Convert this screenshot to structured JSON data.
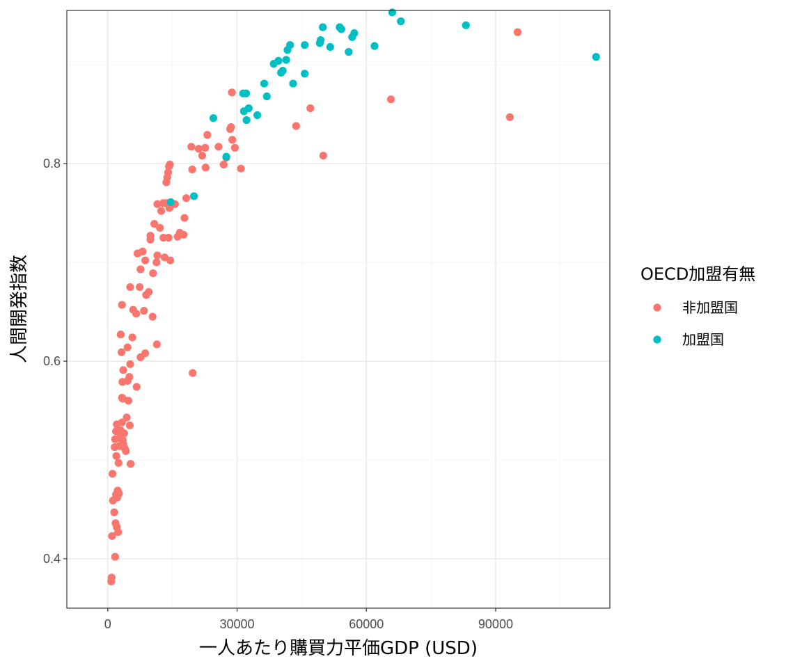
{
  "chart_data": {
    "type": "scatter",
    "title": "",
    "xlabel": "一人あたり購買力平価GDP (USD)",
    "ylabel": "人間開発指数",
    "xlim": [
      -9500,
      116500
    ],
    "ylim": [
      0.35,
      0.955
    ],
    "x_ticks": [
      0,
      30000,
      60000,
      90000
    ],
    "x_tick_labels": [
      "0",
      "30000",
      "60000",
      "90000"
    ],
    "y_ticks": [
      0.4,
      0.6,
      0.8
    ],
    "y_tick_labels": [
      "0.4",
      "0.6",
      "0.8"
    ],
    "grid": true,
    "legend": {
      "title": "OECD加盟有無",
      "placement": "right"
    },
    "series": [
      {
        "name": "非加盟国",
        "color": "#F8766D",
        "points": [
          [
            800,
            0.377
          ],
          [
            900,
            0.381
          ],
          [
            1000,
            0.423
          ],
          [
            1200,
            0.459
          ],
          [
            1100,
            0.486
          ],
          [
            1500,
            0.447
          ],
          [
            1700,
            0.402
          ],
          [
            1800,
            0.436
          ],
          [
            1900,
            0.465
          ],
          [
            1600,
            0.513
          ],
          [
            1700,
            0.521
          ],
          [
            1900,
            0.529
          ],
          [
            2000,
            0.504
          ],
          [
            2100,
            0.432
          ],
          [
            2200,
            0.462
          ],
          [
            2300,
            0.469
          ],
          [
            2400,
            0.427
          ],
          [
            2500,
            0.497
          ],
          [
            2600,
            0.466
          ],
          [
            2700,
            0.514
          ],
          [
            2100,
            0.536
          ],
          [
            2800,
            0.522
          ],
          [
            3000,
            0.53
          ],
          [
            3100,
            0.526
          ],
          [
            3300,
            0.538
          ],
          [
            3500,
            0.52
          ],
          [
            3600,
            0.516
          ],
          [
            3800,
            0.527
          ],
          [
            3900,
            0.512
          ],
          [
            4200,
            0.509
          ],
          [
            3300,
            0.563
          ],
          [
            3500,
            0.562
          ],
          [
            3400,
            0.579
          ],
          [
            3600,
            0.591
          ],
          [
            4400,
            0.543
          ],
          [
            4600,
            0.58
          ],
          [
            4800,
            0.56
          ],
          [
            5000,
            0.584
          ],
          [
            5200,
            0.597
          ],
          [
            5100,
            0.535
          ],
          [
            5300,
            0.496
          ],
          [
            3200,
            0.609
          ],
          [
            4600,
            0.614
          ],
          [
            5700,
            0.624
          ],
          [
            6700,
            0.574
          ],
          [
            7600,
            0.604
          ],
          [
            8700,
            0.608
          ],
          [
            3300,
            0.657
          ],
          [
            5200,
            0.675
          ],
          [
            5900,
            0.652
          ],
          [
            6600,
            0.648
          ],
          [
            7400,
            0.675
          ],
          [
            8400,
            0.651
          ],
          [
            8900,
            0.667
          ],
          [
            9500,
            0.67
          ],
          [
            10400,
            0.645
          ],
          [
            11400,
            0.617
          ],
          [
            3000,
            0.627
          ],
          [
            7600,
            0.693
          ],
          [
            6900,
            0.709
          ],
          [
            8100,
            0.711
          ],
          [
            8700,
            0.702
          ],
          [
            9900,
            0.723
          ],
          [
            9900,
            0.727
          ],
          [
            10500,
            0.689
          ],
          [
            11300,
            0.7
          ],
          [
            11500,
            0.707
          ],
          [
            12100,
            0.735
          ],
          [
            11500,
            0.759
          ],
          [
            12400,
            0.752
          ],
          [
            12900,
            0.725
          ],
          [
            13200,
            0.705
          ],
          [
            13600,
            0.76
          ],
          [
            14100,
            0.725
          ],
          [
            14500,
            0.702
          ],
          [
            14300,
            0.755
          ],
          [
            14700,
            0.758
          ],
          [
            15600,
            0.759
          ],
          [
            16200,
            0.726
          ],
          [
            16700,
            0.73
          ],
          [
            17600,
            0.728
          ],
          [
            17800,
            0.745
          ],
          [
            18200,
            0.765
          ],
          [
            19700,
            0.588
          ],
          [
            19600,
            0.794
          ],
          [
            19400,
            0.817
          ],
          [
            21100,
            0.815
          ],
          [
            21900,
            0.808
          ],
          [
            22600,
            0.816
          ],
          [
            23100,
            0.829
          ],
          [
            22700,
            0.796
          ],
          [
            25700,
            0.817
          ],
          [
            26900,
            0.799
          ],
          [
            27500,
            0.806
          ],
          [
            28400,
            0.835
          ],
          [
            28600,
            0.837
          ],
          [
            28900,
            0.824
          ],
          [
            29500,
            0.816
          ],
          [
            28800,
            0.872
          ],
          [
            30900,
            0.795
          ],
          [
            13600,
            0.781
          ],
          [
            13800,
            0.786
          ],
          [
            14000,
            0.791
          ],
          [
            14200,
            0.797
          ],
          [
            14400,
            0.799
          ],
          [
            10800,
            0.739
          ],
          [
            12900,
            0.76
          ],
          [
            43700,
            0.838
          ],
          [
            47000,
            0.856
          ],
          [
            50000,
            0.808
          ],
          [
            65700,
            0.865
          ],
          [
            93300,
            0.847
          ],
          [
            95100,
            0.933
          ]
        ]
      },
      {
        "name": "加盟国",
        "color": "#00BFC4",
        "points": [
          [
            14600,
            0.761
          ],
          [
            20000,
            0.767
          ],
          [
            24500,
            0.846
          ],
          [
            27500,
            0.807
          ],
          [
            31400,
            0.871
          ],
          [
            31600,
            0.853
          ],
          [
            32100,
            0.871
          ],
          [
            32200,
            0.844
          ],
          [
            32700,
            0.856
          ],
          [
            34700,
            0.849
          ],
          [
            36300,
            0.881
          ],
          [
            36900,
            0.868
          ],
          [
            38500,
            0.901
          ],
          [
            39600,
            0.904
          ],
          [
            40200,
            0.892
          ],
          [
            40600,
            0.894
          ],
          [
            41400,
            0.905
          ],
          [
            41700,
            0.915
          ],
          [
            42300,
            0.92
          ],
          [
            43000,
            0.881
          ],
          [
            45700,
            0.891
          ],
          [
            45700,
            0.92
          ],
          [
            49200,
            0.922
          ],
          [
            49400,
            0.925
          ],
          [
            49900,
            0.938
          ],
          [
            51600,
            0.918
          ],
          [
            53800,
            0.938
          ],
          [
            54200,
            0.936
          ],
          [
            55900,
            0.913
          ],
          [
            56700,
            0.928
          ],
          [
            57200,
            0.932
          ],
          [
            61900,
            0.919
          ],
          [
            66000,
            0.953
          ],
          [
            68000,
            0.944
          ],
          [
            83100,
            0.94
          ],
          [
            113300,
            0.908
          ]
        ]
      }
    ]
  }
}
